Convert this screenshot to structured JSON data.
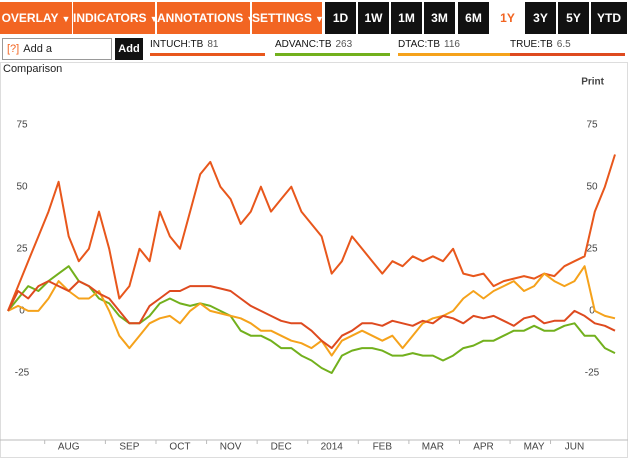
{
  "toolbar": {
    "menus": [
      "OVERLAY",
      "INDICATORS",
      "ANNOTATIONS",
      "SETTINGS"
    ],
    "ranges": [
      "1D",
      "1W",
      "1M",
      "3M",
      "6M",
      "1Y",
      "3Y",
      "5Y",
      "YTD"
    ],
    "active_range": 5
  },
  "comparison": {
    "help": "[?]",
    "placeholder": "Add a Comparison",
    "button": "Add"
  },
  "print": "Print",
  "chart_data": {
    "type": "line",
    "categories": [
      null,
      null,
      null,
      null,
      null,
      null,
      "AUG",
      null,
      null,
      null,
      null,
      null,
      "SEP",
      null,
      null,
      null,
      null,
      "OCT",
      null,
      null,
      null,
      null,
      "NOV",
      null,
      null,
      null,
      null,
      "DEC",
      null,
      null,
      null,
      null,
      "2014",
      null,
      null,
      null,
      null,
      "FEB",
      null,
      null,
      null,
      null,
      "MAR",
      null,
      null,
      null,
      null,
      "APR",
      null,
      null,
      null,
      null,
      "MAY",
      null,
      null,
      null,
      "JUN",
      null,
      null,
      null,
      null
    ],
    "ylim": [
      -52,
      95
    ],
    "yticks": [
      -25,
      0,
      25,
      50,
      75
    ],
    "grid": false,
    "series": [
      {
        "name": "INTUCH:TB",
        "price": 81,
        "color": "#e8571c",
        "values": [
          0,
          10,
          20,
          30,
          40,
          52,
          30,
          20,
          25,
          40,
          25,
          5,
          10,
          25,
          20,
          40,
          30,
          25,
          40,
          55,
          60,
          50,
          45,
          35,
          40,
          50,
          40,
          45,
          50,
          40,
          35,
          30,
          15,
          20,
          30,
          25,
          20,
          15,
          20,
          18,
          22,
          20,
          22,
          20,
          25,
          15,
          14,
          15,
          10,
          12,
          13,
          14,
          13,
          15,
          14,
          18,
          20,
          22,
          40,
          50,
          63
        ]
      },
      {
        "name": "ADVANC:TB",
        "price": 263,
        "color": "#72b01d",
        "values": [
          0,
          5,
          10,
          8,
          12,
          15,
          18,
          12,
          10,
          5,
          3,
          -2,
          -5,
          -5,
          -2,
          3,
          5,
          3,
          2,
          3,
          2,
          0,
          -2,
          -8,
          -10,
          -10,
          -12,
          -15,
          -15,
          -18,
          -20,
          -23,
          -25,
          -18,
          -16,
          -15,
          -15,
          -16,
          -18,
          -18,
          -17,
          -18,
          -18,
          -20,
          -18,
          -15,
          -14,
          -12,
          -12,
          -10,
          -8,
          -8,
          -6,
          -8,
          -8,
          -6,
          -5,
          -10,
          -10,
          -15,
          -17
        ]
      },
      {
        "name": "DTAC:TB",
        "price": 116,
        "color": "#f5a21b",
        "values": [
          0,
          2,
          0,
          0,
          5,
          12,
          8,
          5,
          5,
          8,
          0,
          -10,
          -15,
          -10,
          -5,
          -3,
          -2,
          -5,
          0,
          3,
          0,
          -1,
          -2,
          -3,
          -5,
          -8,
          -8,
          -10,
          -12,
          -13,
          -15,
          -12,
          -18,
          -12,
          -10,
          -8,
          -10,
          -12,
          -10,
          -15,
          -10,
          -5,
          -3,
          -2,
          0,
          5,
          8,
          5,
          8,
          10,
          12,
          8,
          10,
          15,
          12,
          10,
          12,
          18,
          0,
          -2,
          -3
        ]
      },
      {
        "name": "TRUE:TB",
        "price": 6.5,
        "color": "#de4a1f",
        "values": [
          0,
          8,
          5,
          10,
          12,
          10,
          8,
          12,
          10,
          7,
          5,
          0,
          -5,
          -5,
          2,
          5,
          8,
          8,
          10,
          10,
          10,
          9,
          8,
          5,
          2,
          0,
          -2,
          -4,
          -5,
          -5,
          -8,
          -12,
          -15,
          -10,
          -8,
          -5,
          -5,
          -6,
          -4,
          -5,
          -6,
          -4,
          -5,
          -2,
          -3,
          -5,
          -2,
          -3,
          -2,
          -4,
          -6,
          -3,
          -2,
          -5,
          -4,
          -4,
          0,
          -2,
          -5,
          -6,
          -8
        ]
      }
    ]
  }
}
